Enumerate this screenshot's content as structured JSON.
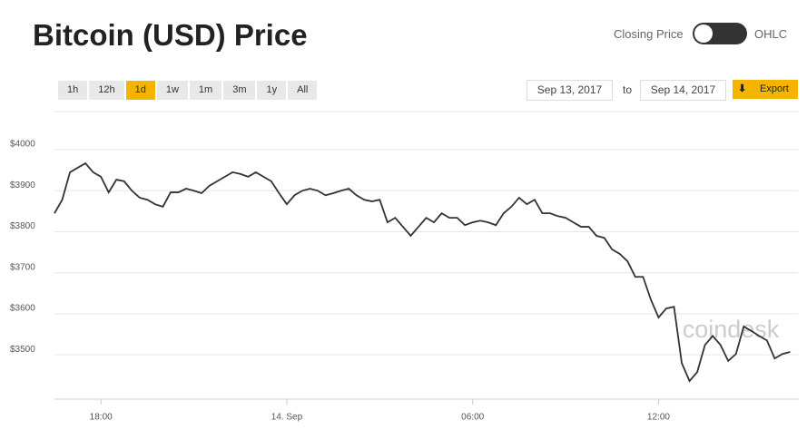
{
  "chart_data": {
    "type": "line",
    "title": "Bitcoin (USD) Price",
    "watermark": "coindesk",
    "x": [
      "16:30",
      "16:45",
      "17:00",
      "17:15",
      "17:30",
      "17:45",
      "18:00",
      "18:15",
      "18:30",
      "18:45",
      "19:00",
      "19:15",
      "19:30",
      "19:45",
      "20:00",
      "20:15",
      "20:30",
      "20:45",
      "21:00",
      "21:15",
      "21:30",
      "21:45",
      "22:00",
      "22:15",
      "22:30",
      "22:45",
      "23:00",
      "23:15",
      "23:30",
      "23:45",
      "00:00",
      "00:15",
      "00:30",
      "00:45",
      "01:00",
      "01:15",
      "01:30",
      "01:45",
      "02:00",
      "02:15",
      "02:30",
      "02:45",
      "03:00",
      "03:15",
      "03:30",
      "03:45",
      "04:00",
      "04:15",
      "04:30",
      "04:45",
      "05:00",
      "05:15",
      "05:30",
      "05:45",
      "06:00",
      "06:15",
      "06:30",
      "06:45",
      "07:00",
      "07:15",
      "07:30",
      "07:45",
      "08:00",
      "08:15",
      "08:30",
      "08:45",
      "09:00",
      "09:15",
      "09:30",
      "09:45",
      "10:00",
      "10:15",
      "10:30",
      "10:45",
      "11:00",
      "11:15",
      "11:30",
      "11:45",
      "12:00",
      "12:15",
      "12:30",
      "12:45",
      "13:00",
      "13:15",
      "13:30",
      "13:45",
      "14:00",
      "14:15",
      "14:30",
      "14:45",
      "15:00",
      "15:15",
      "15:30",
      "15:45",
      "16:00",
      "16:15"
    ],
    "series": [
      {
        "color": "#333333",
        "values": [
          3845,
          3878,
          3945,
          3956,
          3967,
          3945,
          3934,
          3896,
          3927,
          3923,
          3900,
          3883,
          3878,
          3867,
          3861,
          3896,
          3896,
          3905,
          3900,
          3894,
          3912,
          3923,
          3934,
          3945,
          3941,
          3934,
          3945,
          3934,
          3923,
          3894,
          3867,
          3889,
          3900,
          3905,
          3900,
          3889,
          3894,
          3900,
          3905,
          3889,
          3878,
          3874,
          3878,
          3823,
          3834,
          3812,
          3790,
          3812,
          3834,
          3823,
          3845,
          3834,
          3834,
          3816,
          3823,
          3827,
          3823,
          3816,
          3845,
          3861,
          3883,
          3867,
          3878,
          3845,
          3845,
          3838,
          3834,
          3823,
          3812,
          3812,
          3790,
          3785,
          3757,
          3746,
          3728,
          3690,
          3690,
          3635,
          3591,
          3613,
          3617,
          3480,
          3436,
          3458,
          3524,
          3546,
          3524,
          3485,
          3502,
          3569,
          3558,
          3546,
          3535,
          3491,
          3502,
          3507
        ]
      }
    ],
    "ylim": [
      3392,
      4093
    ],
    "yticks": [
      {
        "value": 3500,
        "label": "$3500"
      },
      {
        "value": 3600,
        "label": "$3600"
      },
      {
        "value": 3700,
        "label": "$3700"
      },
      {
        "value": 3800,
        "label": "$3800"
      },
      {
        "value": 3900,
        "label": "$3900"
      },
      {
        "value": 4000,
        "label": "$4000"
      }
    ],
    "xticks": [
      "18:00",
      {
        "value": "00:00",
        "label": "14. Sep"
      },
      "06:00",
      "12:00"
    ],
    "grid": true
  },
  "controls": {
    "mode_left": "Closing Price",
    "mode_right": "OHLC",
    "ranges": [
      "1h",
      "12h",
      "1d",
      "1w",
      "1m",
      "3m",
      "1y",
      "All"
    ],
    "active_range": "1d",
    "date_from": "Sep 13, 2017",
    "date_separator": "to",
    "date_to": "Sep 14, 2017",
    "export": "Export"
  }
}
